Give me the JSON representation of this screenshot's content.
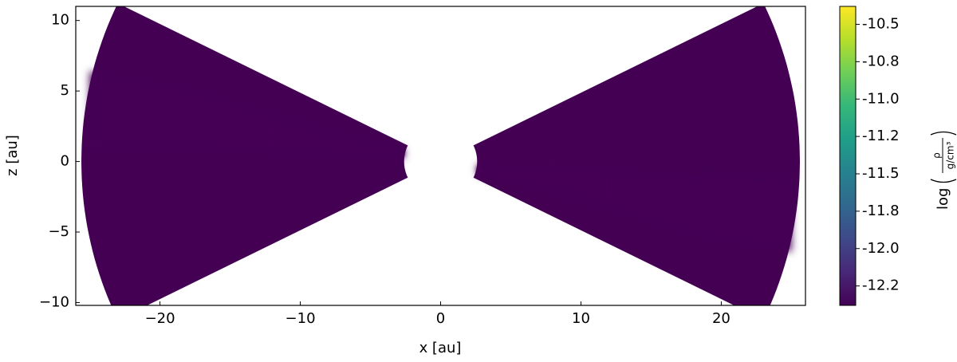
{
  "chart_data": {
    "type": "density-map",
    "xlabel": "x [au]",
    "ylabel": "z [au]",
    "xlim": [
      -26,
      26
    ],
    "ylim": [
      -10.2,
      11
    ],
    "xticks": [
      {
        "value": -20,
        "label": "−20"
      },
      {
        "value": -10,
        "label": "−10"
      },
      0,
      10,
      20
    ],
    "yticks": [
      {
        "value": -10,
        "label": "−10"
      },
      {
        "value": -5,
        "label": "−5"
      },
      0,
      5,
      10
    ],
    "background": "#440154",
    "colorbar": {
      "label": {
        "prefix": "log",
        "numerator": "ρ",
        "denominator": "g/cm³"
      },
      "lim": [
        -12.38,
        -10.38
      ],
      "ticks": [
        {
          "value": -10.5,
          "label": "-10.5"
        },
        {
          "value": -10.75,
          "label": "-10.8"
        },
        {
          "value": -11,
          "label": "-11.0"
        },
        {
          "value": -11.25,
          "label": "-11.2"
        },
        {
          "value": -11.5,
          "label": "-11.5"
        },
        {
          "value": -11.75,
          "label": "-11.8"
        },
        {
          "value": -12,
          "label": "-12.0"
        },
        {
          "value": -12.25,
          "label": "-12.2"
        }
      ],
      "colormap": [
        "#440154",
        "#482878",
        "#3e4989",
        "#31688e",
        "#26828e",
        "#1f9e89",
        "#35b779",
        "#6ece58",
        "#b5de2b",
        "#fde725"
      ]
    }
  }
}
